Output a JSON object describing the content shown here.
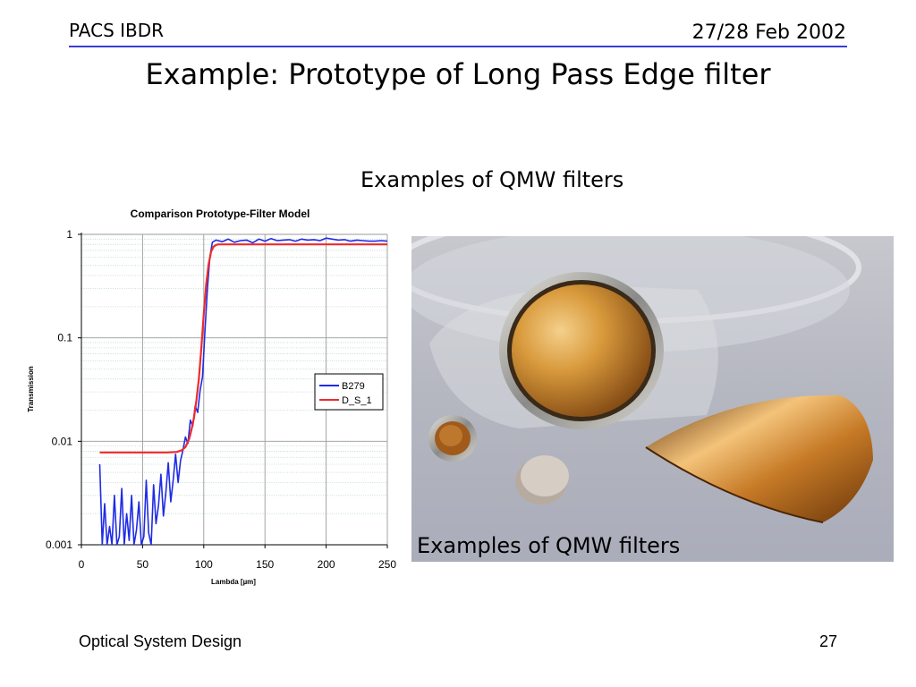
{
  "header": {
    "left": "PACS IBDR",
    "right": "27/28 Feb 2002"
  },
  "title": "Example:  Prototype of Long Pass Edge filter",
  "subtitle": "Examples of QMW filters",
  "photo": {
    "caption": "Examples of QMW filters"
  },
  "footer": {
    "left": "Optical System Design",
    "right": "27"
  },
  "colors": {
    "rule": "#3b3bd6",
    "b279": "#1f2be6",
    "ds1": "#ee2b2b"
  },
  "chart_data": {
    "type": "line",
    "title": "Comparison Prototype-Filter Model",
    "xlabel": "Lambda [µm]",
    "ylabel": "Transmission",
    "xlim": [
      0,
      250
    ],
    "ylim": [
      0.001,
      1
    ],
    "yscale": "log",
    "x_ticks": [
      "0",
      "50",
      "100",
      "150",
      "200",
      "250"
    ],
    "y_ticks": [
      "1",
      "0.1",
      "0.01",
      "0.001"
    ],
    "grid": true,
    "legend_position": "right",
    "series": [
      {
        "name": "B279",
        "color": "#1f2be6",
        "x": [
          15,
          17,
          19,
          21,
          23,
          25,
          27,
          29,
          31,
          33,
          35,
          37,
          39,
          41,
          43,
          45,
          47,
          49,
          51,
          53,
          55,
          57,
          59,
          61,
          63,
          65,
          67,
          69,
          71,
          73,
          75,
          77,
          79,
          81,
          83,
          85,
          87,
          89,
          91,
          93,
          95,
          97,
          99,
          101,
          103,
          105,
          107,
          110,
          115,
          120,
          125,
          130,
          135,
          140,
          145,
          150,
          155,
          160,
          165,
          170,
          175,
          180,
          185,
          190,
          195,
          200,
          205,
          210,
          215,
          220,
          225,
          230,
          235,
          240,
          245,
          250
        ],
        "y": [
          0.006,
          0.001,
          0.0025,
          0.001,
          0.0015,
          0.001,
          0.003,
          0.001,
          0.0012,
          0.0035,
          0.001,
          0.002,
          0.0011,
          0.003,
          0.001,
          0.0014,
          0.0026,
          0.001,
          0.0012,
          0.0042,
          0.0013,
          0.001,
          0.0038,
          0.0016,
          0.0024,
          0.0048,
          0.0019,
          0.0032,
          0.0062,
          0.0026,
          0.0042,
          0.0075,
          0.004,
          0.0065,
          0.0082,
          0.011,
          0.0095,
          0.016,
          0.014,
          0.022,
          0.019,
          0.031,
          0.042,
          0.12,
          0.3,
          0.6,
          0.84,
          0.88,
          0.85,
          0.9,
          0.84,
          0.87,
          0.88,
          0.83,
          0.9,
          0.86,
          0.91,
          0.87,
          0.88,
          0.89,
          0.86,
          0.9,
          0.88,
          0.89,
          0.87,
          0.92,
          0.9,
          0.88,
          0.89,
          0.86,
          0.88,
          0.87,
          0.86,
          0.86,
          0.87,
          0.86
        ]
      },
      {
        "name": "D_S_1",
        "color": "#ee2b2b",
        "x": [
          15,
          30,
          50,
          70,
          78,
          82,
          85,
          88,
          90,
          92,
          94,
          96,
          98,
          100,
          102,
          104,
          106,
          108,
          110,
          112,
          115,
          120,
          130,
          150,
          200,
          250
        ],
        "y": [
          0.0078,
          0.0078,
          0.0078,
          0.0078,
          0.0079,
          0.0082,
          0.0088,
          0.0105,
          0.013,
          0.017,
          0.025,
          0.04,
          0.08,
          0.17,
          0.33,
          0.52,
          0.68,
          0.76,
          0.79,
          0.8,
          0.8,
          0.8,
          0.8,
          0.8,
          0.8,
          0.8
        ]
      }
    ]
  }
}
